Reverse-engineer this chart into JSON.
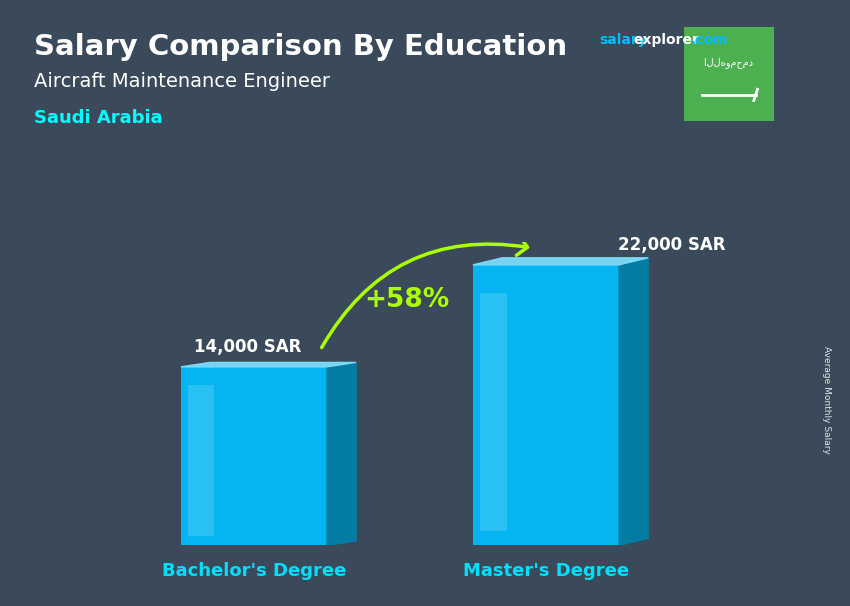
{
  "title": "Salary Comparison By Education",
  "subtitle": "Aircraft Maintenance Engineer",
  "country": "Saudi Arabia",
  "categories": [
    "Bachelor's Degree",
    "Master's Degree"
  ],
  "values": [
    14000,
    22000
  ],
  "value_labels": [
    "14,000 SAR",
    "22,000 SAR"
  ],
  "pct_change": "+58%",
  "bar_color_main": "#00BFFF",
  "bar_color_dark": "#0080AA",
  "bar_color_light": "#80DFFF",
  "ylabel_text": "Average Monthly Salary",
  "website_salary": "salary",
  "website_explorer": "explorer",
  "website_com": ".com",
  "title_color": "#FFFFFF",
  "subtitle_color": "#FFFFFF",
  "country_color": "#00FFFF",
  "pct_color": "#AAFF00",
  "bar_label_color": "#FFFFFF",
  "xticklabel_color": "#00DFFF",
  "bg_color": "#3a4a5a",
  "flag_bg_color": "#4CAF50"
}
